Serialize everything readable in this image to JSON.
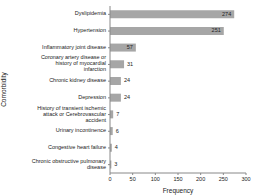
{
  "chart_data": {
    "type": "bar",
    "orientation": "horizontal",
    "x_label": "Frequency",
    "y_label": "Comorbidity",
    "categories": [
      "Dyslipidemia",
      "Hypertension",
      "Inflammatory joint disease",
      "Coronary artery disease or history of myocardial infarction",
      "Chronic kidney disease",
      "Depression",
      "History of transient ischemic attack or Cerebrovascular accident",
      "Urinary incontinence",
      "Congestive heart failure",
      "Chronic obstructive pulmonary disease"
    ],
    "values": [
      274,
      251,
      57,
      31,
      24,
      24,
      7,
      6,
      4,
      3
    ],
    "color": "#a6a6a6",
    "xlim": [
      0,
      300
    ],
    "xticks": [
      0,
      50,
      100,
      150,
      200,
      250,
      300
    ],
    "grid": false,
    "data_labels": true
  }
}
